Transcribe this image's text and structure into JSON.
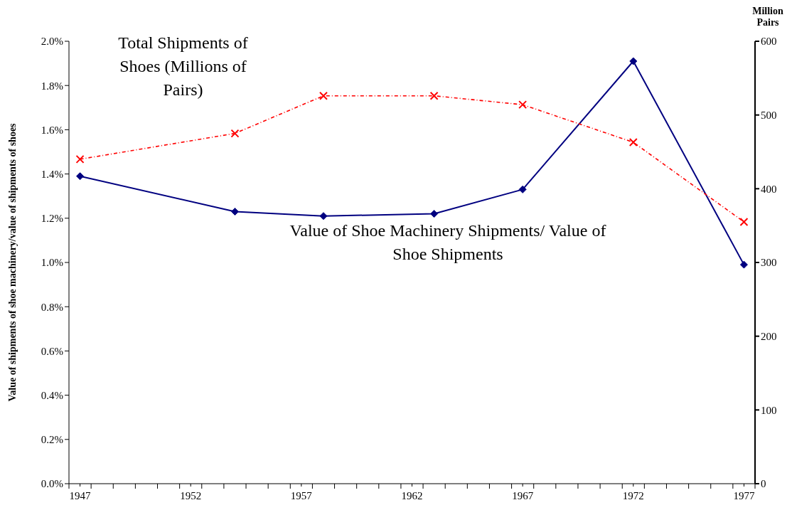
{
  "chart_data": {
    "type": "line",
    "ylabel": "Value of shipments of shoe machinery/value of shipments of shoes",
    "y2label": "Million Pairs",
    "x": [
      1947,
      1954,
      1958,
      1963,
      1967,
      1972,
      1977
    ],
    "series": [
      {
        "name": "Value of Shoe Machinery Shipments/ Value of Shoe Shipments",
        "color": "#000080",
        "values": [
          1.39,
          1.23,
          1.21,
          1.22,
          1.33,
          1.91,
          0.99
        ],
        "marker": "diamond",
        "line_style": "solid"
      },
      {
        "name": "Total Shipments of Shoes (Millions of Pairs)",
        "color": "#ff0000",
        "values": [
          440,
          475,
          526,
          526,
          514,
          463,
          355
        ],
        "axis": "y2",
        "marker": "cross",
        "line_style": "dotted"
      }
    ],
    "xlim": [
      1946.5,
      1977.5
    ],
    "xticks": [
      {
        "value": 1946.5,
        "label": null
      },
      1947,
      {
        "value": 1947.5,
        "label": null
      },
      {
        "value": 1948.5,
        "label": null
      },
      {
        "value": 1949.5,
        "label": null
      },
      {
        "value": 1950.5,
        "label": null
      },
      {
        "value": 1951.5,
        "label": null
      },
      1952,
      {
        "value": 1952.5,
        "label": null
      },
      {
        "value": 1953.5,
        "label": null
      },
      {
        "value": 1954.5,
        "label": null
      },
      {
        "value": 1955.5,
        "label": null
      },
      {
        "value": 1956.5,
        "label": null
      },
      1957,
      {
        "value": 1957.5,
        "label": null
      },
      {
        "value": 1958.5,
        "label": null
      },
      {
        "value": 1959.5,
        "label": null
      },
      {
        "value": 1960.5,
        "label": null
      },
      {
        "value": 1961.5,
        "label": null
      },
      1962,
      {
        "value": 1962.5,
        "label": null
      },
      {
        "value": 1963.5,
        "label": null
      },
      {
        "value": 1964.5,
        "label": null
      },
      {
        "value": 1965.5,
        "label": null
      },
      {
        "value": 1966.5,
        "label": null
      },
      1967,
      {
        "value": 1967.5,
        "label": null
      },
      {
        "value": 1968.5,
        "label": null
      },
      {
        "value": 1969.5,
        "label": null
      },
      {
        "value": 1970.5,
        "label": null
      },
      {
        "value": 1971.5,
        "label": null
      },
      1972,
      {
        "value": 1972.5,
        "label": null
      },
      {
        "value": 1973.5,
        "label": null
      },
      {
        "value": 1974.5,
        "label": null
      },
      {
        "value": 1975.5,
        "label": null
      },
      {
        "value": 1976.5,
        "label": null
      },
      1977,
      {
        "value": 1977.5,
        "label": null
      }
    ],
    "ylim": [
      0,
      2.0
    ],
    "yticks": [
      {
        "value": 0,
        "label": "0.0%"
      },
      {
        "value": 0.2,
        "label": "0.2%"
      },
      {
        "value": 0.4,
        "label": "0.4%"
      },
      {
        "value": 0.6,
        "label": "0.6%"
      },
      {
        "value": 0.8,
        "label": "0.8%"
      },
      {
        "value": 1.0,
        "label": "1.0%"
      },
      {
        "value": 1.2,
        "label": "1.2%"
      },
      {
        "value": 1.4,
        "label": "1.4%"
      },
      {
        "value": 1.6,
        "label": "1.6%"
      },
      {
        "value": 1.8,
        "label": "1.8%"
      },
      {
        "value": 2.0,
        "label": "2.0%"
      }
    ],
    "y2lim": [
      0,
      600
    ],
    "y2ticks": [
      0,
      100,
      200,
      300,
      400,
      500,
      600
    ],
    "grid": false,
    "legend": false
  }
}
